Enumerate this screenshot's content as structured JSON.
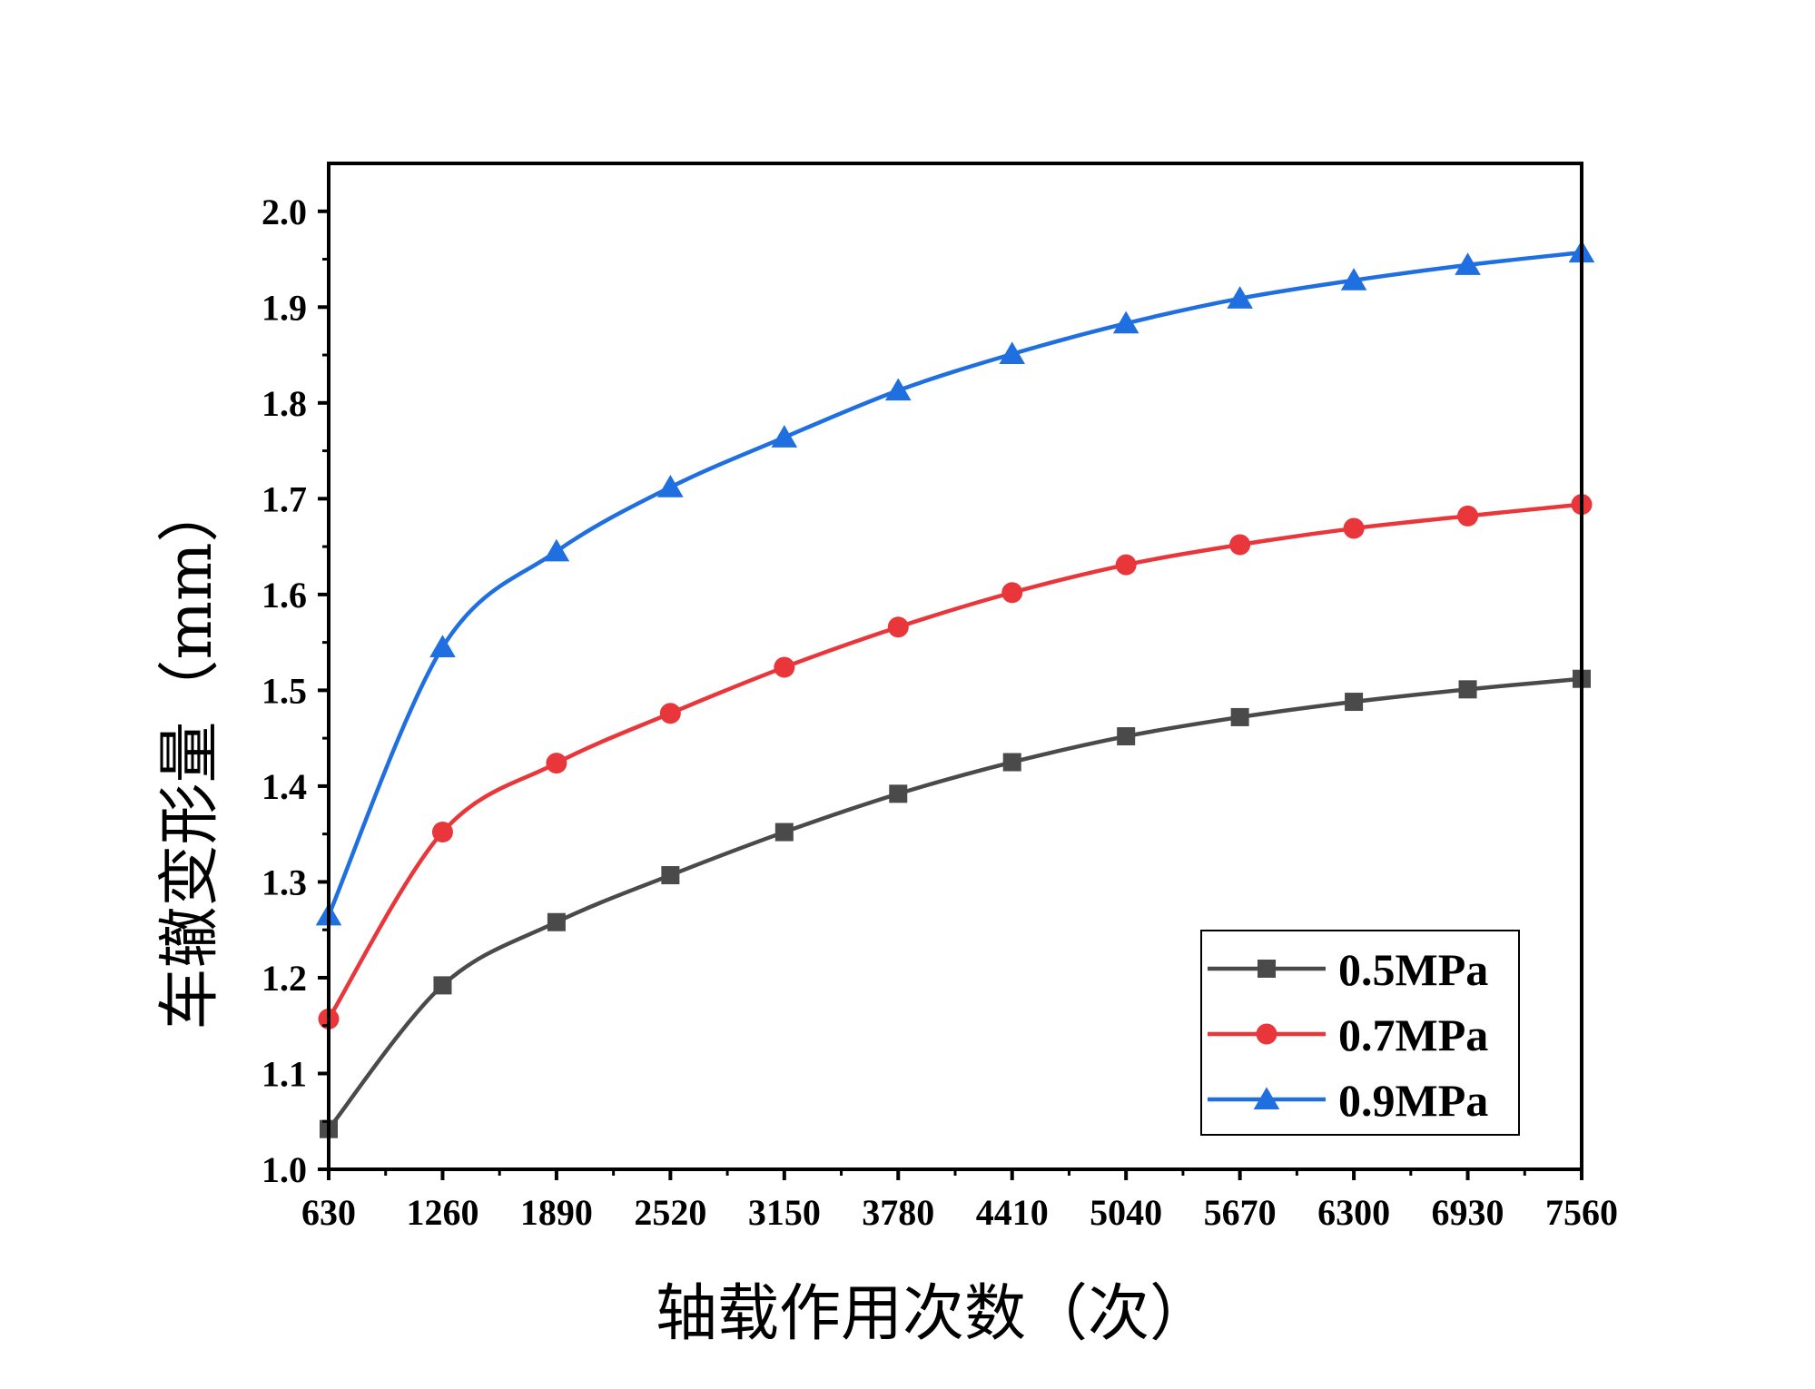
{
  "chart_data": {
    "type": "line",
    "title": "",
    "xlabel": "轴载作用次数（次）",
    "ylabel": "车辙变形量（mm）",
    "categories": [
      "630",
      "1260",
      "1890",
      "2520",
      "3150",
      "3780",
      "4410",
      "5040",
      "5670",
      "6300",
      "6930",
      "7560"
    ],
    "x": [
      630,
      1260,
      1890,
      2520,
      3150,
      3780,
      4410,
      5040,
      5670,
      6300,
      6930,
      7560
    ],
    "xlim": [
      630,
      7560
    ],
    "ylim": [
      1.0,
      2.05
    ],
    "yticks": [
      "1.0",
      "1.1",
      "1.2",
      "1.3",
      "1.4",
      "1.5",
      "1.6",
      "1.7",
      "1.8",
      "1.9",
      "2.0"
    ],
    "grid": false,
    "legend": "bottom-right",
    "series": [
      {
        "name": "0.5MPa",
        "color": "#4a4a4a",
        "marker": "square",
        "values": [
          1.042,
          1.192,
          1.258,
          1.307,
          1.352,
          1.392,
          1.425,
          1.452,
          1.472,
          1.488,
          1.501,
          1.512
        ]
      },
      {
        "name": "0.7MPa",
        "color": "#e8363b",
        "marker": "circle",
        "values": [
          1.157,
          1.352,
          1.424,
          1.476,
          1.524,
          1.566,
          1.602,
          1.631,
          1.652,
          1.669,
          1.682,
          1.694
        ]
      },
      {
        "name": "0.9MPa",
        "color": "#1f6fe0",
        "marker": "triangle",
        "values": [
          1.265,
          1.545,
          1.645,
          1.712,
          1.764,
          1.813,
          1.851,
          1.883,
          1.909,
          1.928,
          1.944,
          1.957
        ]
      }
    ]
  }
}
